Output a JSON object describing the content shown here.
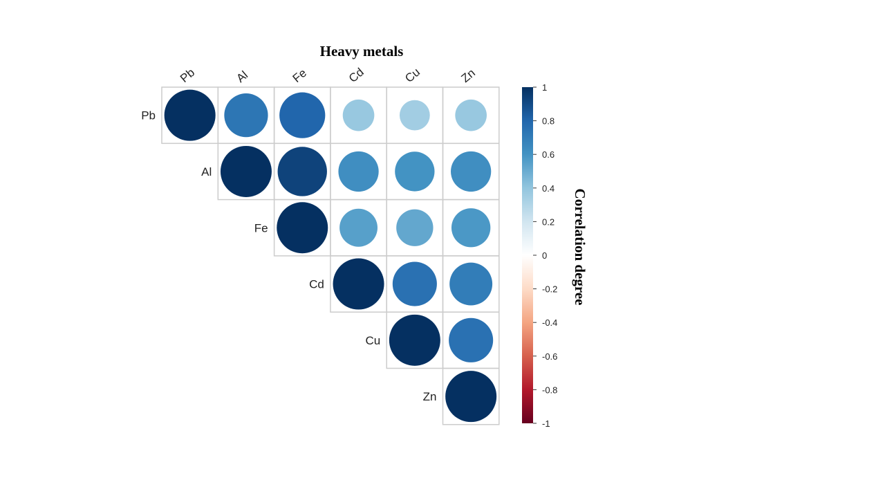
{
  "chart_data": {
    "type": "heatmap",
    "subtype": "correlation-circle-matrix-upper",
    "title": "Heavy metals",
    "variables": [
      "Pb",
      "Al",
      "Fe",
      "Cd",
      "Cu",
      "Zn"
    ],
    "matrix": [
      [
        1.0,
        0.73,
        0.8,
        0.38,
        0.35,
        0.38
      ],
      [
        0.73,
        1.0,
        0.93,
        0.62,
        0.6,
        0.62
      ],
      [
        0.8,
        0.93,
        1.0,
        0.55,
        0.52,
        0.58
      ],
      [
        0.38,
        0.62,
        0.55,
        1.0,
        0.75,
        0.7
      ],
      [
        0.35,
        0.6,
        0.52,
        0.75,
        1.0,
        0.75
      ],
      [
        0.38,
        0.62,
        0.58,
        0.7,
        0.75,
        1.0
      ]
    ],
    "colorbar": {
      "title": "Correlation degree",
      "range": [
        -1,
        1
      ],
      "ticks": [
        "1",
        "0.8",
        "0.6",
        "0.4",
        "0.2",
        "0",
        "-0.2",
        "-0.4",
        "-0.6",
        "-0.8",
        "-1"
      ],
      "palette": [
        "#67001f",
        "#b2182b",
        "#d6604d",
        "#f4a582",
        "#fddbc7",
        "#ffffff",
        "#d1e5f0",
        "#92c5de",
        "#4393c3",
        "#2166ac",
        "#053061"
      ]
    },
    "grid": true,
    "legend_position": "right"
  }
}
